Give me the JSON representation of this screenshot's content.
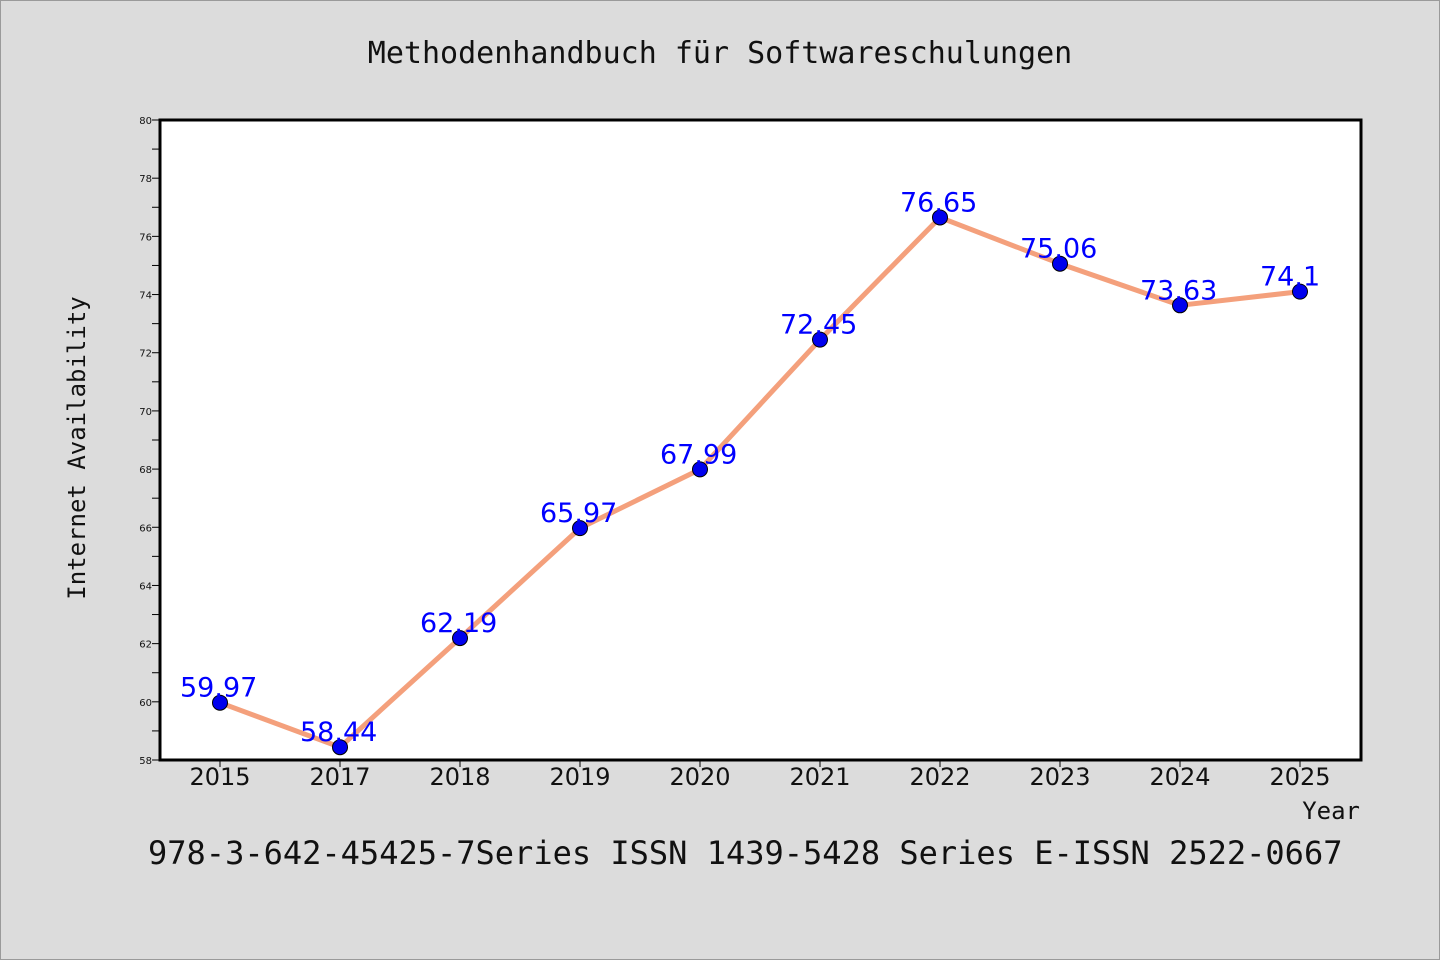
{
  "chart_data": {
    "type": "line",
    "title": "Methodenhandbuch für Softwareschulungen",
    "xlabel": "Year",
    "ylabel": "Internet Availability",
    "categories": [
      "2015",
      "2017",
      "2018",
      "2019",
      "2020",
      "2021",
      "2022",
      "2023",
      "2024",
      "2025"
    ],
    "series": [
      {
        "values": [
          59.97,
          58.44,
          62.19,
          65.97,
          67.99,
          72.45,
          76.65,
          75.06,
          73.63,
          74.1
        ],
        "line_color": "#f4a07c",
        "marker_color": "#0000ee"
      }
    ],
    "data_labels": [
      "59.97",
      "58.44",
      "62.19",
      "65.97",
      "67.99",
      "72.45",
      "76.65",
      "75.06",
      "73.63",
      "74.1"
    ],
    "ylim": [
      58,
      80
    ],
    "yticks": [
      "58",
      "60",
      "62",
      "64",
      "66",
      "68",
      "70",
      "72",
      "74",
      "76",
      "78",
      "80"
    ],
    "grid": false,
    "legend": "none",
    "label_color": "#0000ff"
  },
  "footer": "978-3-642-45425-7Series ISSN 1439-5428 Series E-ISSN 2522-0667"
}
